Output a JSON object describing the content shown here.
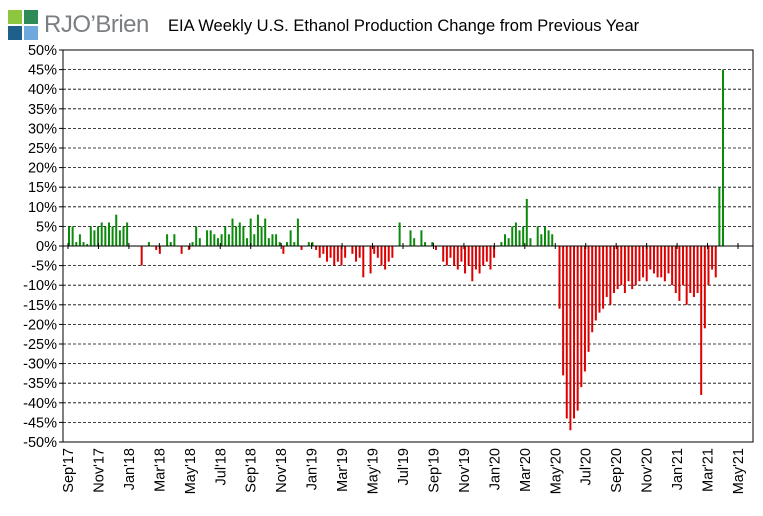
{
  "logo": {
    "text": "RJO’Brien",
    "colors": [
      "#8dc63f",
      "#2e8b57",
      "#1f5f8b",
      "#6fa8dc"
    ]
  },
  "chart_data": {
    "type": "bar",
    "title": "EIA Weekly U.S. Ethanol Production Change from Previous Year",
    "xlabel": "",
    "ylabel": "",
    "ylim": [
      -50,
      50
    ],
    "y_tick_step": 5,
    "y_tick_format": "percent",
    "grid": "horizontal dashed",
    "positive_color": "#0a8a0a",
    "negative_color": "#dd0000",
    "x_tick_labels": [
      "Sep'17",
      "Nov'17",
      "Jan'18",
      "Mar'18",
      "May'18",
      "Jul'18",
      "Sep'18",
      "Nov'18",
      "Jan'19",
      "Mar'19",
      "May'19",
      "Jul'19",
      "Sep'19",
      "Nov'19",
      "Jan'20",
      "Mar'20",
      "May'20",
      "Jul'20",
      "Sep'20",
      "Nov'20",
      "Jan'21",
      "Mar'21",
      "May'21"
    ],
    "series": [
      {
        "values": [
          5,
          5,
          1,
          3,
          1,
          0.5,
          5,
          4,
          5,
          6,
          5,
          6,
          5,
          8,
          4,
          5,
          6,
          0,
          0,
          0,
          -5,
          0,
          1,
          0,
          -1,
          -2,
          0,
          3,
          1,
          3,
          0,
          -2,
          0,
          -1,
          1,
          5,
          2,
          0,
          4,
          4,
          3,
          2,
          3,
          5,
          3,
          7,
          5,
          6,
          5,
          2,
          7,
          3,
          8,
          5,
          7,
          2,
          3,
          3,
          1,
          -2,
          1,
          4,
          1,
          7,
          -1,
          0,
          1,
          1,
          -1,
          -3,
          -2,
          -4,
          -3,
          -5,
          -4,
          -5,
          -3,
          0,
          -2,
          -4,
          -3,
          -8,
          0,
          -7,
          -2,
          -3,
          -5,
          -6,
          -4,
          -3,
          0,
          6,
          0,
          0,
          4,
          2,
          0,
          4,
          1,
          0,
          1,
          -1,
          0,
          -4,
          -5,
          -3,
          -5,
          -6,
          -4,
          -7,
          -5,
          -9,
          -6,
          -7,
          -5,
          -4,
          -6,
          -3,
          0,
          1,
          3,
          2,
          5,
          6,
          4,
          5,
          12,
          2,
          0,
          5,
          3,
          5,
          4,
          3,
          0,
          -16,
          -33,
          -44,
          -47,
          -44,
          -42,
          -36,
          -32,
          -27,
          -22,
          -19,
          -17,
          -16,
          -13,
          -15,
          -12,
          -11,
          -10,
          -12,
          -9,
          -11,
          -10,
          -9,
          -8,
          -9,
          -6,
          -7,
          -8,
          -8,
          -9,
          -7,
          -10,
          -12,
          -14,
          -10,
          -15,
          -12,
          -13,
          -12,
          -38,
          -21,
          -10,
          -6,
          -8,
          15,
          45
        ]
      }
    ]
  }
}
